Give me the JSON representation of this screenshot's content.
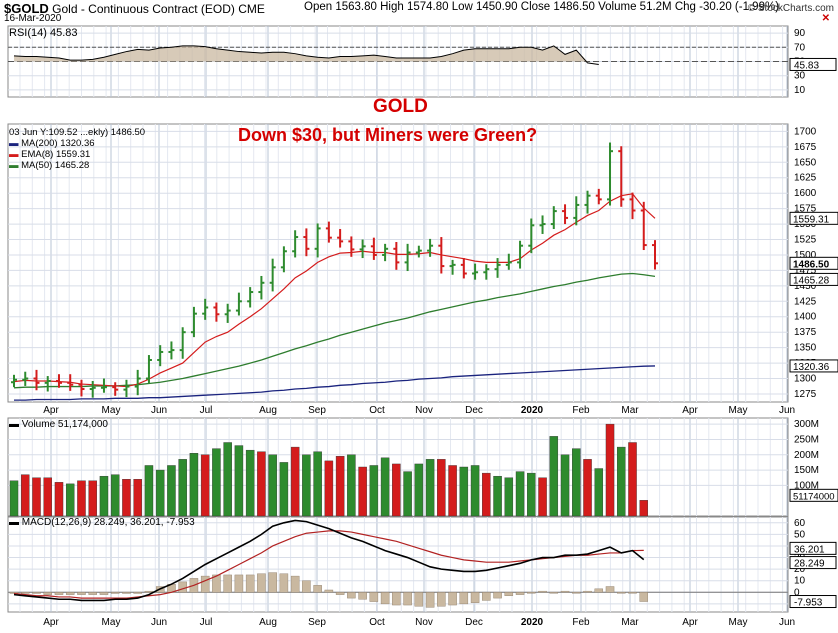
{
  "header": {
    "symbol": "$GOLD",
    "name": "Gold - Continuous Contract (EOD)",
    "exchange": "CME",
    "date": "16-Mar-2020",
    "ohlc_text": "Open 1563.80  High 1574.80  Low 1450.90  Close 1486.50  Volume 51.2M  Chg -30.20 (-1.99%)",
    "source": "© StockCharts.com"
  },
  "annotations": {
    "title": "GOLD",
    "subtitle": "Down $30, but Miners were Green?"
  },
  "colors": {
    "up": "#2e8b2e",
    "down": "#d41c1c",
    "ema": "#d41c1c",
    "ma50": "#2e7d2e",
    "ma200": "#1a237e",
    "macd": "#000000",
    "signal": "#b22222",
    "hist": "#c9b8a0"
  },
  "chart_data": [
    {
      "type": "line",
      "panel": "rsi",
      "label": "RSI(14) 45.83",
      "ylim": [
        0,
        100
      ],
      "yticks": [
        10,
        30,
        50,
        70,
        90
      ],
      "last_value_label": "45.83",
      "values": [
        58,
        57,
        57,
        56,
        55,
        52,
        52,
        53,
        56,
        60,
        64,
        67,
        66,
        69,
        70,
        72,
        72,
        71,
        68,
        66,
        64,
        63,
        62,
        63,
        63,
        61,
        58,
        56,
        55,
        57,
        57,
        58,
        59,
        57,
        55,
        55,
        55,
        55,
        57,
        61,
        66,
        68,
        68,
        68,
        68,
        70,
        70,
        66,
        72,
        60,
        66,
        48,
        45.83
      ]
    },
    {
      "type": "candlestick",
      "panel": "price",
      "label": "03 Jun Y:109.52 ...ekly) 1486.50",
      "ylim": [
        1262,
        1712
      ],
      "yticks": [
        1275,
        1300,
        1325,
        1350,
        1375,
        1400,
        1425,
        1450,
        1475,
        1500,
        1525,
        1550,
        1575,
        1600,
        1625,
        1650,
        1675,
        1700
      ],
      "x_labels": [
        "Apr",
        "May",
        "Jun",
        "Jul",
        "Aug",
        "Sep",
        "Oct",
        "Nov",
        "Dec",
        "2020",
        "Feb",
        "Mar",
        "Apr",
        "May",
        "Jun"
      ],
      "legend": [
        {
          "label": "MA(200) 1320.36",
          "color": "#1a237e"
        },
        {
          "label": "EMA(8) 1559.31",
          "color": "#d41c1c"
        },
        {
          "label": "MA(50) 1465.28",
          "color": "#2e7d2e"
        }
      ],
      "value_labels": [
        "1559.31",
        "1486.50",
        "1465.28",
        "1320.36"
      ],
      "closes": [
        1298,
        1300,
        1293,
        1296,
        1293,
        1290,
        1283,
        1285,
        1286,
        1282,
        1287,
        1300,
        1330,
        1343,
        1346,
        1375,
        1405,
        1415,
        1404,
        1410,
        1425,
        1440,
        1455,
        1480,
        1506,
        1529,
        1510,
        1543,
        1528,
        1522,
        1509,
        1514,
        1500,
        1510,
        1488,
        1504,
        1507,
        1515,
        1482,
        1484,
        1470,
        1472,
        1477,
        1484,
        1488,
        1515,
        1548,
        1550,
        1571,
        1560,
        1581,
        1596,
        1590,
        1668,
        1590,
        1572,
        1516,
        1486.5
      ],
      "ema8": [
        1295,
        1297,
        1296,
        1296,
        1295,
        1294,
        1291,
        1290,
        1289,
        1288,
        1287,
        1291,
        1299,
        1309,
        1317,
        1325,
        1342,
        1359,
        1368,
        1375,
        1388,
        1400,
        1413,
        1429,
        1445,
        1463,
        1474,
        1488,
        1497,
        1503,
        1504,
        1506,
        1504,
        1504,
        1501,
        1501,
        1502,
        1504,
        1500,
        1497,
        1494,
        1490,
        1488,
        1488,
        1488,
        1494,
        1508,
        1519,
        1532,
        1541,
        1553,
        1564,
        1572,
        1587,
        1596,
        1599,
        1576,
        1559.31
      ],
      "ma50": [
        1285,
        1286,
        1286,
        1287,
        1287,
        1287,
        1287,
        1288,
        1288,
        1288,
        1289,
        1290,
        1292,
        1294,
        1297,
        1300,
        1304,
        1308,
        1312,
        1316,
        1320,
        1325,
        1330,
        1336,
        1342,
        1348,
        1353,
        1359,
        1364,
        1370,
        1375,
        1380,
        1385,
        1390,
        1394,
        1398,
        1403,
        1408,
        1412,
        1416,
        1420,
        1424,
        1427,
        1431,
        1434,
        1437,
        1441,
        1445,
        1449,
        1452,
        1456,
        1459,
        1463,
        1466,
        1469,
        1470,
        1468,
        1465.28
      ],
      "ma200": [
        1265,
        1265,
        1266,
        1266,
        1266,
        1266,
        1267,
        1267,
        1267,
        1268,
        1268,
        1268,
        1269,
        1269,
        1270,
        1271,
        1272,
        1273,
        1274,
        1275,
        1276,
        1277,
        1278,
        1280,
        1281,
        1283,
        1284,
        1286,
        1287,
        1289,
        1290,
        1292,
        1293,
        1294,
        1296,
        1297,
        1299,
        1300,
        1301,
        1303,
        1304,
        1305,
        1306,
        1307,
        1308,
        1309,
        1310,
        1311,
        1312,
        1313,
        1314,
        1315,
        1316,
        1317,
        1318,
        1319,
        1320,
        1320.36
      ]
    },
    {
      "type": "bar",
      "panel": "volume",
      "label": "Volume 51,174,000",
      "ylim": [
        0,
        320
      ],
      "yticks": [
        100,
        150,
        200,
        250,
        300
      ],
      "ytick_labels": [
        "100M",
        "150M",
        "200M",
        "250M",
        "300M"
      ],
      "last_value_label": "51174000",
      "values_m": [
        115,
        135,
        125,
        125,
        110,
        105,
        115,
        115,
        130,
        135,
        120,
        120,
        165,
        150,
        165,
        185,
        205,
        200,
        220,
        240,
        230,
        215,
        210,
        200,
        175,
        225,
        200,
        210,
        180,
        195,
        200,
        160,
        165,
        190,
        170,
        145,
        170,
        185,
        185,
        165,
        160,
        165,
        140,
        130,
        125,
        145,
        140,
        125,
        260,
        200,
        220,
        185,
        155,
        300,
        225,
        240,
        51.174
      ],
      "up": [
        1,
        0,
        0,
        0,
        0,
        1,
        0,
        0,
        1,
        1,
        0,
        0,
        1,
        1,
        1,
        1,
        1,
        0,
        1,
        1,
        1,
        1,
        0,
        1,
        1,
        0,
        1,
        1,
        0,
        0,
        1,
        0,
        1,
        1,
        0,
        1,
        1,
        1,
        0,
        0,
        1,
        1,
        0,
        1,
        1,
        1,
        1,
        0,
        1,
        1,
        1,
        0,
        1,
        0,
        1,
        0,
        0
      ]
    },
    {
      "type": "line",
      "panel": "macd",
      "label": "MACD(12,26,9) 28.249, 36.201, -7.953",
      "ylim": [
        -17,
        65
      ],
      "yticks": [
        -10,
        0,
        10,
        20,
        30,
        40,
        50,
        60
      ],
      "value_labels": [
        "36.201",
        "28.249",
        "-7.953"
      ],
      "macd": [
        -2,
        -3,
        -4,
        -5,
        -6,
        -6,
        -7,
        -7,
        -7,
        -6,
        -6,
        -5,
        -2,
        3,
        7,
        12,
        18,
        24,
        29,
        34,
        39,
        44,
        50,
        57,
        60,
        62,
        61,
        58,
        55,
        51,
        47,
        44,
        40,
        36,
        33,
        30,
        26,
        22,
        20,
        19,
        18,
        18,
        19,
        21,
        23,
        25,
        28,
        30,
        30,
        32,
        32,
        33,
        36,
        39,
        34,
        36,
        28.249
      ],
      "signal": [
        -1,
        -2,
        -3,
        -3,
        -4,
        -4,
        -5,
        -5,
        -5,
        -5,
        -5,
        -4,
        -3,
        -2,
        0,
        3,
        6,
        10,
        14,
        19,
        24,
        29,
        34,
        40,
        44,
        48,
        51,
        52,
        53,
        53,
        52,
        50,
        48,
        46,
        44,
        41,
        38,
        35,
        32,
        30,
        28,
        27,
        26,
        26,
        26,
        27,
        28,
        29,
        30,
        31,
        32,
        32,
        33,
        34,
        34,
        36,
        36.201
      ],
      "hist": [
        -1,
        -1,
        -1,
        -2,
        -2,
        -2,
        -2,
        -2,
        -2,
        -1,
        -1,
        -1,
        1,
        5,
        7,
        9,
        12,
        14,
        15,
        15,
        15,
        15,
        16,
        17,
        16,
        14,
        10,
        6,
        2,
        -2,
        -5,
        -6,
        -8,
        -10,
        -11,
        -11,
        -12,
        -13,
        -12,
        -11,
        -10,
        -9,
        -7,
        -5,
        -3,
        -2,
        0,
        1,
        0,
        1,
        0,
        1,
        3,
        5,
        0,
        0,
        -7.953
      ]
    }
  ]
}
